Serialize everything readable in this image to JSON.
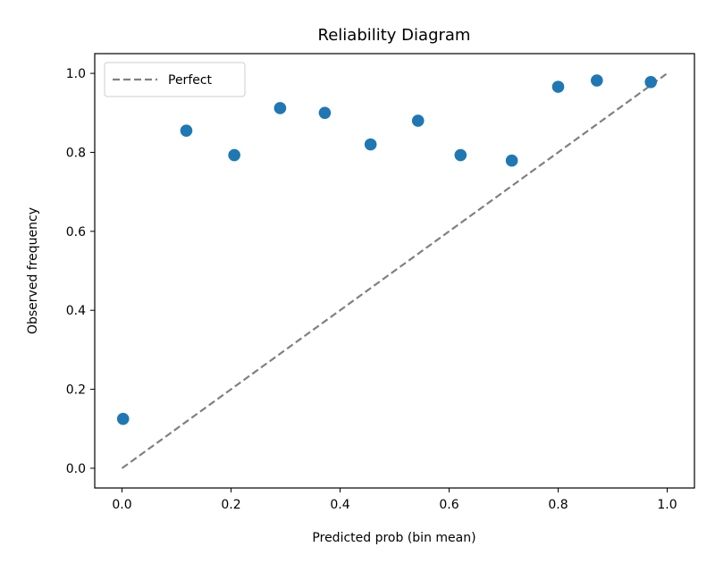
{
  "chart_data": {
    "type": "scatter",
    "title": "Reliability Diagram",
    "xlabel": "Predicted prob (bin mean)",
    "ylabel": "Observed frequency",
    "xlim": [
      -0.05,
      1.05
    ],
    "ylim": [
      -0.05,
      1.05
    ],
    "xticks": [
      {
        "value": 0.0,
        "label": "0.0"
      },
      {
        "value": 0.2,
        "label": "0.2"
      },
      {
        "value": 0.4,
        "label": "0.4"
      },
      {
        "value": 0.6,
        "label": "0.6"
      },
      {
        "value": 0.8,
        "label": "0.8"
      },
      {
        "value": 1.0,
        "label": "1.0"
      }
    ],
    "yticks": [
      {
        "value": 0.0,
        "label": "0.0"
      },
      {
        "value": 0.2,
        "label": "0.2"
      },
      {
        "value": 0.4,
        "label": "0.4"
      },
      {
        "value": 0.6,
        "label": "0.6"
      },
      {
        "value": 0.8,
        "label": "0.8"
      },
      {
        "value": 1.0,
        "label": "1.0"
      }
    ],
    "grid": false,
    "legend_position": "top-left",
    "series": [
      {
        "type": "scatter",
        "color": "#1f77b4",
        "points": [
          {
            "x": 0.002,
            "y": 0.125
          },
          {
            "x": 0.118,
            "y": 0.855
          },
          {
            "x": 0.206,
            "y": 0.793
          },
          {
            "x": 0.29,
            "y": 0.912
          },
          {
            "x": 0.372,
            "y": 0.9
          },
          {
            "x": 0.456,
            "y": 0.82
          },
          {
            "x": 0.543,
            "y": 0.88
          },
          {
            "x": 0.621,
            "y": 0.793
          },
          {
            "x": 0.715,
            "y": 0.779
          },
          {
            "x": 0.8,
            "y": 0.966
          },
          {
            "x": 0.871,
            "y": 0.982
          },
          {
            "x": 0.97,
            "y": 0.978
          }
        ]
      },
      {
        "type": "line",
        "name": "Perfect",
        "style": "dashed",
        "color": "#808080",
        "points": [
          {
            "x": 0.0,
            "y": 0.0
          },
          {
            "x": 1.0,
            "y": 1.0
          }
        ]
      }
    ]
  }
}
